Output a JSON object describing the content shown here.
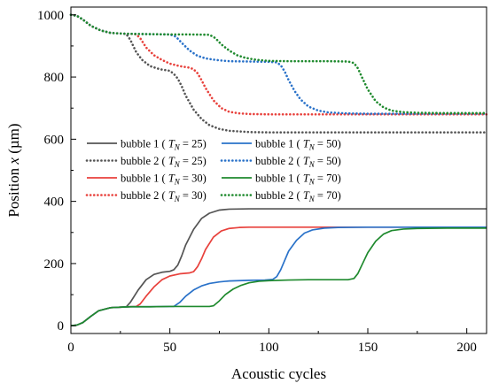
{
  "chart_data": {
    "type": "line",
    "title": "",
    "xlabel": "Acoustic cycles",
    "ylabel": "Position x (µm)",
    "ylabel_parts": {
      "prefix": "Position ",
      "variable": "x",
      "suffix": " (µm)"
    },
    "xlim": [
      0,
      210
    ],
    "ylim": [
      -25,
      1025
    ],
    "x_ticks": [
      0,
      50,
      100,
      150,
      200
    ],
    "y_ticks": [
      0,
      200,
      400,
      600,
      800,
      1000
    ],
    "x_tick_labels": [
      "0",
      "50",
      "100",
      "150",
      "200"
    ],
    "y_tick_labels": [
      "0",
      "200",
      "400",
      "600",
      "800",
      "1000"
    ],
    "grid": false,
    "legend": {
      "placement": "center-left",
      "columns": 2
    },
    "series": [
      {
        "name": "bubble 1 (T_N = 25)",
        "legend_label": {
          "prefix": "bubble 1 ( ",
          "var": "T",
          "sub": "N",
          "suffix": " = 25)"
        },
        "color": "#555555",
        "dash": "solid",
        "x": [
          0,
          3,
          6,
          10,
          14,
          20,
          26,
          28,
          30,
          34,
          38,
          42,
          46,
          50,
          52,
          54,
          56,
          58,
          62,
          66,
          70,
          75,
          80,
          90,
          100,
          110,
          130,
          150,
          170,
          190,
          210
        ],
        "y": [
          0,
          2,
          10,
          30,
          48,
          58,
          60,
          61,
          75,
          115,
          148,
          165,
          172,
          175,
          180,
          195,
          225,
          260,
          310,
          345,
          362,
          372,
          375,
          376,
          376,
          376,
          376,
          376,
          376,
          376,
          376
        ]
      },
      {
        "name": "bubble 2 (T_N = 25)",
        "legend_label": {
          "prefix": "bubble 2 ( ",
          "var": "T",
          "sub": "N",
          "suffix": " = 25)"
        },
        "color": "#555555",
        "dash": "dotted",
        "x": [
          0,
          3,
          6,
          10,
          15,
          20,
          25,
          28,
          30,
          33,
          36,
          40,
          45,
          50,
          52,
          54,
          56,
          58,
          62,
          66,
          70,
          75,
          80,
          90,
          100,
          110,
          130,
          150,
          170,
          190,
          210
        ],
        "y": [
          1000,
          997,
          985,
          965,
          950,
          942,
          940,
          938,
          920,
          880,
          855,
          835,
          825,
          820,
          810,
          795,
          770,
          740,
          695,
          665,
          645,
          633,
          627,
          623,
          622,
          622,
          622,
          622,
          622,
          622,
          622
        ]
      },
      {
        "name": "bubble 1 (T_N = 30)",
        "legend_label": {
          "prefix": "bubble 1 ( ",
          "var": "T",
          "sub": "N",
          "suffix": " = 30)"
        },
        "color": "#e8413c",
        "dash": "solid",
        "x": [
          0,
          3,
          6,
          10,
          14,
          20,
          26,
          30,
          33,
          35,
          38,
          42,
          46,
          50,
          55,
          60,
          62,
          64,
          66,
          68,
          72,
          76,
          80,
          85,
          90,
          100,
          110,
          130,
          150,
          170,
          190,
          210
        ],
        "y": [
          0,
          2,
          10,
          30,
          48,
          58,
          60,
          61,
          62,
          70,
          95,
          125,
          148,
          160,
          167,
          170,
          174,
          190,
          215,
          245,
          285,
          305,
          313,
          316,
          317,
          317,
          317,
          317,
          317,
          317,
          317,
          317
        ]
      },
      {
        "name": "bubble 2 (T_N = 30)",
        "legend_label": {
          "prefix": "bubble 2 ( ",
          "var": "T",
          "sub": "N",
          "suffix": " = 30)"
        },
        "color": "#e8413c",
        "dash": "dotted",
        "x": [
          0,
          3,
          6,
          10,
          15,
          20,
          25,
          30,
          33,
          35,
          38,
          42,
          46,
          50,
          55,
          60,
          62,
          64,
          66,
          68,
          72,
          76,
          80,
          85,
          90,
          100,
          120,
          140,
          160,
          180,
          200,
          210
        ],
        "y": [
          1000,
          997,
          985,
          965,
          950,
          942,
          940,
          939,
          937,
          925,
          895,
          870,
          855,
          843,
          835,
          830,
          825,
          812,
          790,
          765,
          725,
          700,
          688,
          683,
          681,
          680,
          680,
          680,
          680,
          680,
          680,
          680
        ]
      },
      {
        "name": "bubble 1 (T_N = 50)",
        "legend_label": {
          "prefix": "bubble 1 ( ",
          "var": "T",
          "sub": "N",
          "suffix": " = 50)"
        },
        "color": "#2a72c9",
        "dash": "solid",
        "x": [
          0,
          3,
          6,
          10,
          14,
          20,
          26,
          30,
          40,
          50,
          52,
          55,
          58,
          62,
          66,
          70,
          75,
          80,
          90,
          98,
          102,
          104,
          106,
          108,
          110,
          114,
          118,
          122,
          128,
          135,
          150,
          170,
          190,
          210
        ],
        "y": [
          0,
          2,
          10,
          30,
          48,
          58,
          60,
          61,
          61,
          62,
          62,
          75,
          95,
          115,
          128,
          136,
          141,
          144,
          146,
          147,
          149,
          158,
          180,
          210,
          240,
          275,
          298,
          308,
          314,
          316,
          317,
          317,
          317,
          317
        ]
      },
      {
        "name": "bubble 2 (T_N = 50)",
        "legend_label": {
          "prefix": "bubble 2 ( ",
          "var": "T",
          "sub": "N",
          "suffix": " = 50)"
        },
        "color": "#2a72c9",
        "dash": "dotted",
        "x": [
          0,
          3,
          6,
          10,
          15,
          20,
          25,
          30,
          40,
          50,
          53,
          56,
          60,
          64,
          68,
          72,
          76,
          80,
          90,
          100,
          104,
          106,
          108,
          110,
          113,
          116,
          120,
          125,
          130,
          140,
          150,
          170,
          190,
          210
        ],
        "y": [
          1000,
          997,
          985,
          965,
          950,
          942,
          940,
          939,
          938,
          937,
          930,
          910,
          885,
          868,
          860,
          856,
          853,
          851,
          850,
          849,
          847,
          838,
          818,
          790,
          755,
          728,
          705,
          692,
          686,
          683,
          682,
          682,
          682,
          682
        ]
      },
      {
        "name": "bubble 1 (T_N = 70)",
        "legend_label": {
          "prefix": "bubble 1 ( ",
          "var": "T",
          "sub": "N",
          "suffix": " = 70)"
        },
        "color": "#1f8a2e",
        "dash": "solid",
        "x": [
          0,
          3,
          6,
          10,
          14,
          20,
          26,
          30,
          40,
          50,
          60,
          70,
          72,
          75,
          78,
          82,
          86,
          90,
          95,
          100,
          110,
          120,
          130,
          140,
          143,
          145,
          147,
          150,
          154,
          158,
          162,
          168,
          175,
          190,
          210
        ],
        "y": [
          0,
          2,
          10,
          30,
          48,
          58,
          60,
          61,
          61,
          62,
          62,
          62,
          64,
          80,
          100,
          118,
          130,
          138,
          143,
          145,
          147,
          148,
          148,
          148,
          152,
          168,
          195,
          235,
          272,
          295,
          306,
          311,
          313,
          314,
          314
        ]
      },
      {
        "name": "bubble 2 (T_N = 70)",
        "legend_label": {
          "prefix": "bubble 2 ( ",
          "var": "T",
          "sub": "N",
          "suffix": " = 70)"
        },
        "color": "#1f8a2e",
        "dash": "dotted",
        "x": [
          0,
          3,
          6,
          10,
          15,
          20,
          25,
          30,
          40,
          50,
          60,
          70,
          73,
          76,
          80,
          84,
          88,
          92,
          96,
          100,
          110,
          120,
          130,
          140,
          143,
          145,
          147,
          150,
          154,
          158,
          162,
          168,
          175,
          190,
          210
        ],
        "y": [
          1000,
          997,
          985,
          965,
          950,
          942,
          940,
          939,
          938,
          937,
          937,
          936,
          925,
          905,
          885,
          870,
          862,
          857,
          854,
          852,
          851,
          851,
          851,
          850,
          845,
          828,
          800,
          760,
          722,
          702,
          692,
          687,
          685,
          684,
          684
        ]
      }
    ]
  }
}
